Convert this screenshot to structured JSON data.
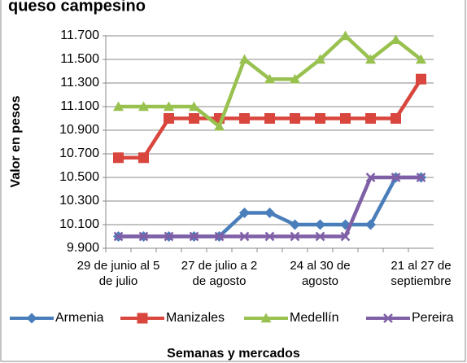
{
  "chart_data": {
    "type": "line",
    "title": "queso campesino",
    "y_label": "Valor en pesos",
    "x_label": "Semanas y mercados",
    "categories": [
      "29 de junio al 5 de julio",
      null,
      null,
      null,
      "27 de julio a 2 de agosto",
      null,
      null,
      null,
      "24 al 30 de agosto",
      null,
      null,
      null,
      "21 al 27 de septiembre"
    ],
    "series": [
      {
        "name": "Armenia",
        "color": "#4a7ebb",
        "marker": "diamond",
        "values": [
          10000,
          10000,
          10000,
          10000,
          10000,
          10200,
          10200,
          10100,
          10100,
          10100,
          10100,
          10500,
          10500
        ]
      },
      {
        "name": "Manizales",
        "color": "#d9463e",
        "marker": "square",
        "values": [
          10667,
          10667,
          11000,
          11000,
          11000,
          11000,
          11000,
          11000,
          11000,
          11000,
          11000,
          11000,
          11333
        ]
      },
      {
        "name": "Medellín",
        "color": "#98c150",
        "marker": "triangle",
        "values": [
          11100,
          11100,
          11100,
          11100,
          10933,
          11500,
          11333,
          11333,
          11500,
          11700,
          11500,
          11667,
          11500
        ]
      },
      {
        "name": "Pereira",
        "color": "#7f5fa6",
        "marker": "x",
        "values": [
          10000,
          10000,
          10000,
          10000,
          10000,
          10000,
          10000,
          10000,
          10000,
          10000,
          10500,
          10500,
          10500
        ]
      }
    ],
    "ylim": [
      9900,
      11700
    ],
    "yticks": [
      {
        "value": 9900,
        "label": "9.900"
      },
      {
        "value": 10100,
        "label": "10.100"
      },
      {
        "value": 10300,
        "label": "10.300"
      },
      {
        "value": 10500,
        "label": "10.500"
      },
      {
        "value": 10700,
        "label": "10.700"
      },
      {
        "value": 10900,
        "label": "10.900"
      },
      {
        "value": 11100,
        "label": "11.100"
      },
      {
        "value": 11300,
        "label": "11.300"
      },
      {
        "value": 11500,
        "label": "11.500"
      },
      {
        "value": 11700,
        "label": "11.700"
      }
    ],
    "grid": true,
    "legend": "bottom"
  }
}
